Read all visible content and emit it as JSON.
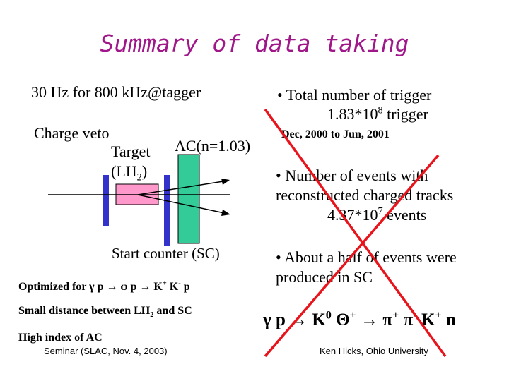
{
  "title": "Summary of data taking",
  "left": {
    "rate": "30 Hz for 800 kHz@tagger",
    "charge_veto": "Charge veto",
    "target": "Target",
    "lh2_open": "(LH",
    "lh2_sub": "2",
    "lh2_close": ")",
    "ac": "AC(n=1.03)",
    "start_counter": "Start counter (SC)",
    "optimized": "Optimized for γ p → φ p → K",
    "k_plus_sup": "+",
    "k_minus": " K",
    "k_minus_sup": "-",
    "p_end": " p",
    "small_distance": "Small distance between LH",
    "small_distance_sub": "2",
    "small_distance_end": " and SC",
    "high_index": "High index of AC"
  },
  "right": {
    "total_label": "• Total number of trigger",
    "total_value": "1.83*10",
    "total_exp": "8",
    "total_unit": " trigger",
    "period": "Dec, 2000 to Jun, 2001",
    "events_line1": "• Number of events with",
    "events_line2": "reconstructed charged tracks",
    "events_value": "4.37*10",
    "events_exp": "7",
    "events_unit": " events",
    "half_line1": "• About a half of events were",
    "half_line2": "produced in SC"
  },
  "reaction": {
    "gamma_p": "γ p → K",
    "k0_sup": "0",
    "theta": " Θ",
    "theta_sup": "+",
    "arrow_pi": " → π",
    "pi_plus_sup": "+",
    "pi_minus": " π",
    "pi_minus_sup": "-",
    "k_plus": " K",
    "k_plus_sup": "+",
    "n": " n"
  },
  "footer": {
    "seminar": "Seminar (SLAC, Nov. 4, 2003)",
    "author": "Ken Hicks, Ohio University"
  },
  "colors": {
    "title": "#a0178a",
    "target": "#ff99cc",
    "start_counter": "#3333cc",
    "ac": "#33cc99",
    "cross": "#e8141c"
  }
}
